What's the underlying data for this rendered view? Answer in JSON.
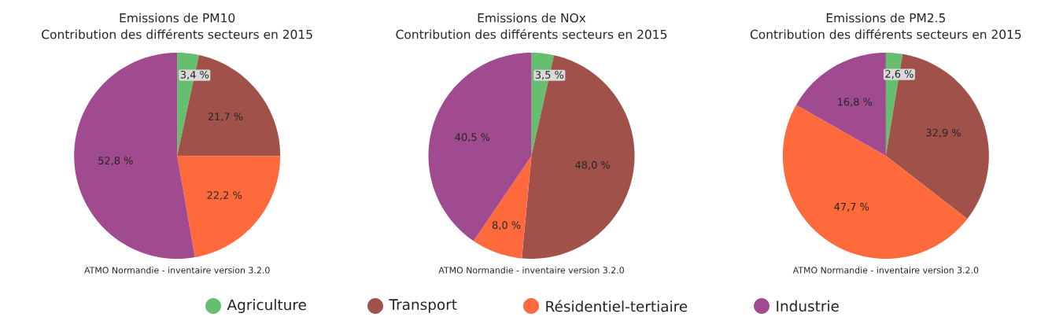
{
  "chart_data": [
    {
      "type": "pie",
      "title": "Emissions de PM10",
      "subtitle": "Contribution des différents secteurs en 2015",
      "categories": [
        "Agriculture",
        "Transport",
        "Résidentiel-tertiaire",
        "Industrie"
      ],
      "values": [
        3.4,
        21.7,
        22.2,
        52.8
      ],
      "value_labels": [
        "3,4 %",
        "21,7 %",
        "22,2 %",
        "52,8 %"
      ],
      "colors": [
        "#66bf6e",
        "#a0524a",
        "#ff6a3d",
        "#a04a90"
      ],
      "annotations": [
        "ATMO Normandie - inventaire version 3.2.0"
      ],
      "legend": "bottom"
    },
    {
      "type": "pie",
      "title": "Emissions de NOx",
      "subtitle": "Contribution des différents secteurs en 2015",
      "values": [
        3.5,
        48.0,
        8.0,
        40.5
      ],
      "value_labels": [
        "3,5 %",
        "48,0 %",
        "8,0 %",
        "40,5 %"
      ],
      "colors": [
        "#66bf6e",
        "#a0524a",
        "#ff6a3d",
        "#a04a90"
      ],
      "annotations": [
        "ATMO Normandie - inventaire version 3.2.0"
      ]
    },
    {
      "type": "pie",
      "title": "Emissions de PM2.5",
      "subtitle": "Contribution des différents secteurs en 2015",
      "values": [
        2.6,
        32.9,
        47.7,
        16.8
      ],
      "value_labels": [
        "2,6 %",
        "32,9 %",
        "47,7 %",
        "16,8 %"
      ],
      "colors": [
        "#66bf6e",
        "#a0524a",
        "#ff6a3d",
        "#a04a90"
      ],
      "annotations": [
        "ATMO Normandie - inventaire version 3.2.0"
      ]
    }
  ]
}
